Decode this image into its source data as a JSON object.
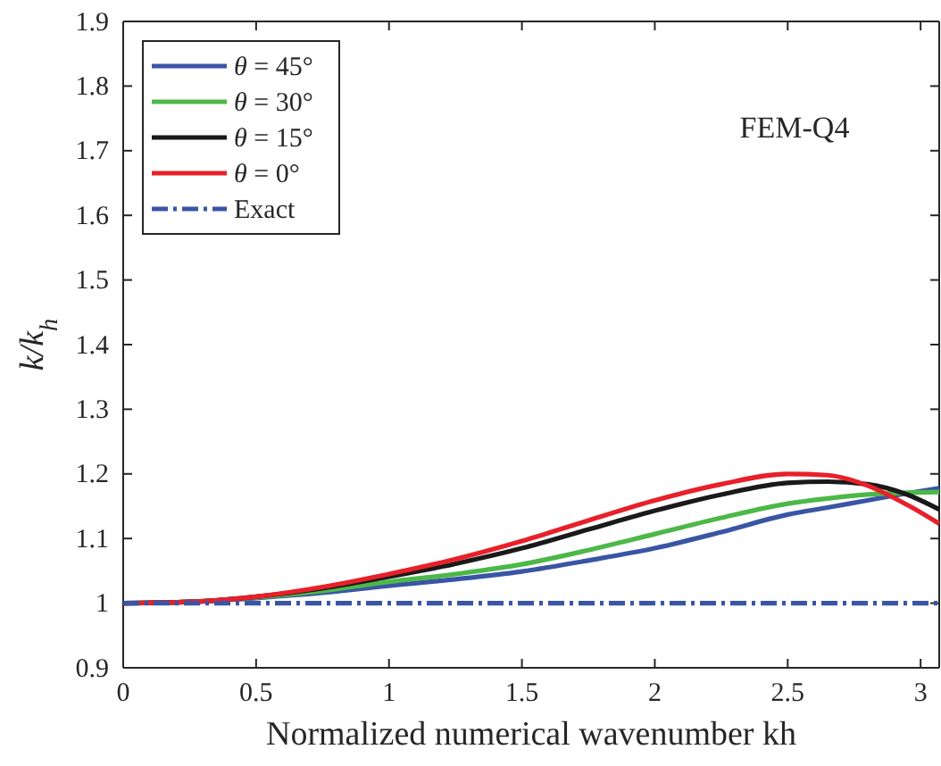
{
  "chart_data": {
    "type": "line",
    "xlabel": "Normalized numerical wavenumber kh",
    "ylabel": "k/k$_{h}$",
    "annotations": [
      "FEM-Q4"
    ],
    "x": [
      0,
      0.25,
      0.5,
      0.75,
      1,
      1.25,
      1.5,
      1.75,
      2,
      2.25,
      2.5,
      2.65,
      2.8,
      2.95,
      3.07
    ],
    "series": [
      {
        "name": "θ = 45°",
        "color": "#3a55a5",
        "values": [
          1,
          1.002,
          1.008,
          1.016,
          1.027,
          1.037,
          1.049,
          1.066,
          1.085,
          1.11,
          1.137,
          1.148,
          1.159,
          1.17,
          1.178
        ]
      },
      {
        "name": "θ = 30°",
        "color": "#4cb848",
        "values": [
          1,
          1.002,
          1.009,
          1.019,
          1.033,
          1.045,
          1.06,
          1.082,
          1.107,
          1.132,
          1.154,
          1.162,
          1.168,
          1.171,
          1.172
        ]
      },
      {
        "name": "θ = 15°",
        "color": "#1a1a1a",
        "values": [
          1,
          1.002,
          1.01,
          1.023,
          1.041,
          1.061,
          1.085,
          1.114,
          1.143,
          1.168,
          1.186,
          1.188,
          1.184,
          1.168,
          1.145
        ]
      },
      {
        "name": "θ = 0°",
        "color": "#e8202a",
        "values": [
          1,
          1.002,
          1.01,
          1.025,
          1.045,
          1.068,
          1.096,
          1.128,
          1.159,
          1.184,
          1.2,
          1.198,
          1.182,
          1.152,
          1.123
        ]
      },
      {
        "name": "Exact",
        "color": "#3a55a5",
        "line_style": "dashdot",
        "values": [
          1,
          1,
          1,
          1,
          1,
          1,
          1,
          1,
          1,
          1,
          1,
          1,
          1,
          1,
          1
        ]
      }
    ],
    "xlim": [
      0,
      3.07
    ],
    "xticks": [
      0,
      0.5,
      1,
      1.5,
      2,
      2.5,
      3
    ],
    "ylim": [
      0.9,
      1.9
    ],
    "yticks": [
      0.9,
      1,
      1.1,
      1.2,
      1.3,
      1.4,
      1.5,
      1.6,
      1.7,
      1.8,
      1.9
    ],
    "legend": "top left",
    "grid": false
  }
}
